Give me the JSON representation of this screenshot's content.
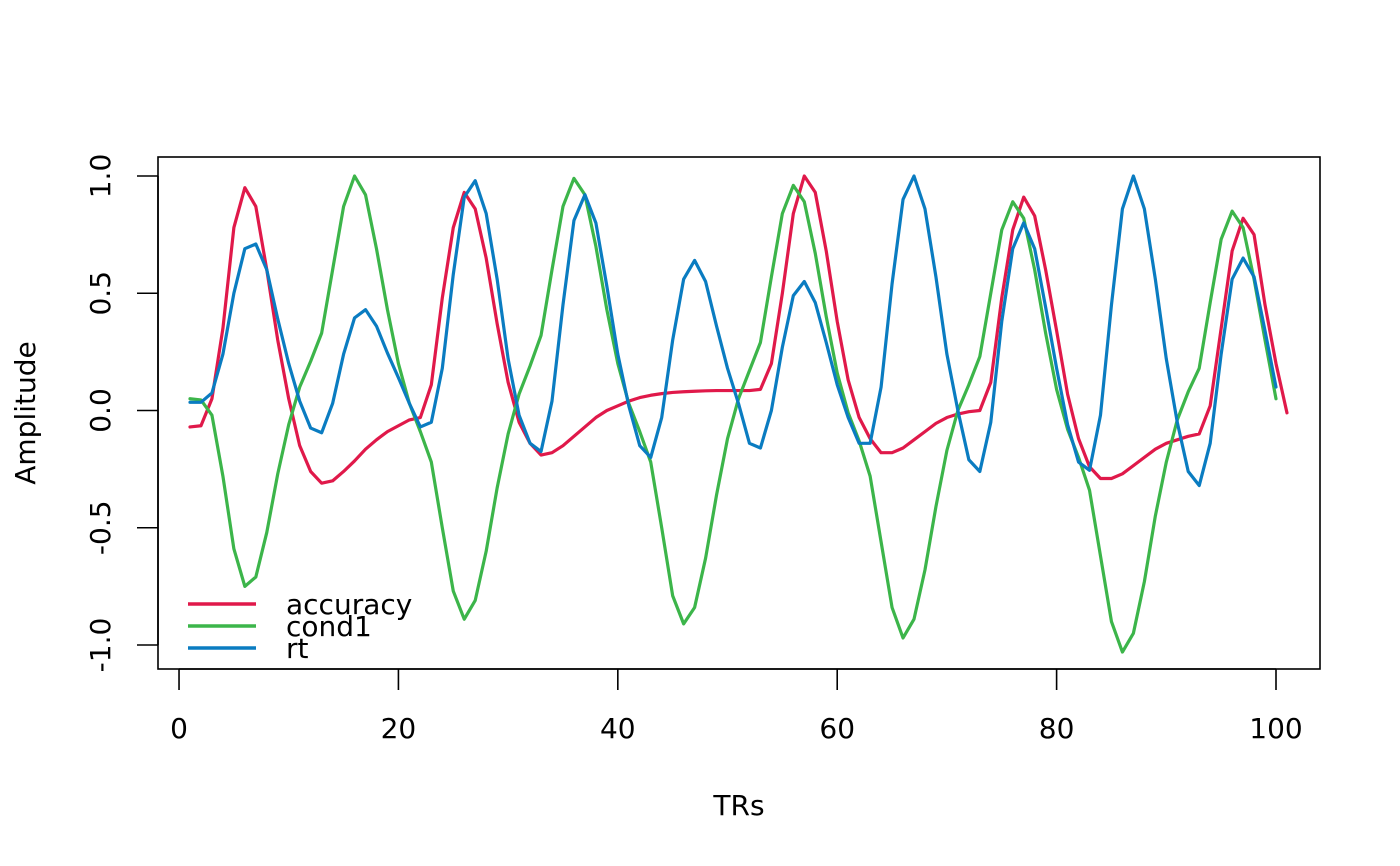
{
  "chart_data": {
    "type": "line",
    "title": "",
    "xlabel": "TRs",
    "ylabel": "Amplitude",
    "xlim": [
      1,
      100
    ],
    "ylim": [
      -1.0,
      1.0
    ],
    "x_ticks": [
      0,
      20,
      40,
      60,
      80,
      100
    ],
    "y_ticks": [
      -1.0,
      -0.5,
      0.0,
      0.5,
      1.0
    ],
    "x_tick_labels": [
      "0",
      "20",
      "40",
      "60",
      "80",
      "100"
    ],
    "y_tick_labels": [
      "-1.0",
      "-0.5",
      "0.0",
      "0.5",
      "1.0"
    ],
    "grid": false,
    "legend_position": "bottom-left",
    "series": [
      {
        "name": "accuracy",
        "color": "#e0194a",
        "values": [
          -0.07,
          -0.065,
          0.05,
          0.35,
          0.78,
          0.95,
          0.87,
          0.6,
          0.3,
          0.05,
          -0.15,
          -0.26,
          -0.31,
          -0.3,
          -0.26,
          -0.215,
          -0.165,
          -0.125,
          -0.09,
          -0.065,
          -0.04,
          -0.03,
          0.11,
          0.48,
          0.78,
          0.93,
          0.86,
          0.65,
          0.37,
          0.12,
          -0.05,
          -0.14,
          -0.19,
          -0.18,
          -0.15,
          -0.11,
          -0.07,
          -0.03,
          0.0,
          0.02,
          0.04,
          0.055,
          0.065,
          0.072,
          0.077,
          0.08,
          0.082,
          0.084,
          0.085,
          0.085,
          0.085,
          0.085,
          0.09,
          0.2,
          0.5,
          0.84,
          1.0,
          0.93,
          0.68,
          0.38,
          0.13,
          -0.03,
          -0.12,
          -0.18,
          -0.18,
          -0.16,
          -0.125,
          -0.09,
          -0.055,
          -0.03,
          -0.015,
          -0.005,
          0.0,
          0.12,
          0.48,
          0.77,
          0.91,
          0.83,
          0.6,
          0.34,
          0.07,
          -0.12,
          -0.24,
          -0.29,
          -0.29,
          -0.27,
          -0.235,
          -0.2,
          -0.165,
          -0.14,
          -0.125,
          -0.11,
          -0.1,
          0.02,
          0.35,
          0.68,
          0.82,
          0.75,
          0.45,
          0.2,
          -0.01
        ]
      },
      {
        "name": "cond1",
        "color": "#3cb54a",
        "values": [
          0.05,
          0.045,
          -0.02,
          -0.28,
          -0.59,
          -0.75,
          -0.71,
          -0.52,
          -0.27,
          -0.06,
          0.1,
          0.21,
          0.33,
          0.6,
          0.87,
          1.0,
          0.92,
          0.69,
          0.43,
          0.2,
          0.03,
          -0.09,
          -0.22,
          -0.5,
          -0.77,
          -0.89,
          -0.81,
          -0.6,
          -0.33,
          -0.1,
          0.07,
          0.19,
          0.32,
          0.6,
          0.87,
          0.99,
          0.92,
          0.7,
          0.43,
          0.2,
          0.03,
          -0.09,
          -0.22,
          -0.5,
          -0.79,
          -0.91,
          -0.84,
          -0.63,
          -0.36,
          -0.12,
          0.05,
          0.17,
          0.29,
          0.57,
          0.84,
          0.96,
          0.89,
          0.67,
          0.4,
          0.16,
          -0.01,
          -0.13,
          -0.28,
          -0.56,
          -0.84,
          -0.97,
          -0.89,
          -0.68,
          -0.41,
          -0.17,
          0.0,
          0.11,
          0.23,
          0.5,
          0.77,
          0.89,
          0.82,
          0.6,
          0.33,
          0.09,
          -0.08,
          -0.2,
          -0.34,
          -0.62,
          -0.9,
          -1.03,
          -0.95,
          -0.73,
          -0.45,
          -0.22,
          -0.04,
          0.08,
          0.18,
          0.46,
          0.73,
          0.85,
          0.78,
          0.56,
          0.3,
          0.05
        ]
      },
      {
        "name": "rt",
        "color": "#0a7cc1",
        "values": [
          0.035,
          0.035,
          0.075,
          0.24,
          0.5,
          0.69,
          0.71,
          0.6,
          0.39,
          0.2,
          0.04,
          -0.075,
          -0.095,
          0.03,
          0.24,
          0.395,
          0.43,
          0.36,
          0.245,
          0.14,
          0.03,
          -0.07,
          -0.05,
          0.18,
          0.58,
          0.91,
          0.98,
          0.84,
          0.56,
          0.22,
          -0.02,
          -0.14,
          -0.175,
          0.04,
          0.45,
          0.81,
          0.92,
          0.8,
          0.53,
          0.24,
          0.02,
          -0.15,
          -0.2,
          -0.03,
          0.3,
          0.56,
          0.64,
          0.55,
          0.36,
          0.18,
          0.03,
          -0.14,
          -0.16,
          0.0,
          0.27,
          0.49,
          0.55,
          0.46,
          0.29,
          0.11,
          -0.03,
          -0.14,
          -0.14,
          0.1,
          0.54,
          0.9,
          1.0,
          0.86,
          0.57,
          0.24,
          0.0,
          -0.21,
          -0.26,
          -0.05,
          0.38,
          0.69,
          0.8,
          0.69,
          0.44,
          0.18,
          -0.06,
          -0.22,
          -0.255,
          -0.02,
          0.45,
          0.86,
          1.0,
          0.86,
          0.56,
          0.22,
          -0.05,
          -0.26,
          -0.32,
          -0.14,
          0.24,
          0.56,
          0.65,
          0.57,
          0.34,
          0.1
        ]
      }
    ]
  }
}
